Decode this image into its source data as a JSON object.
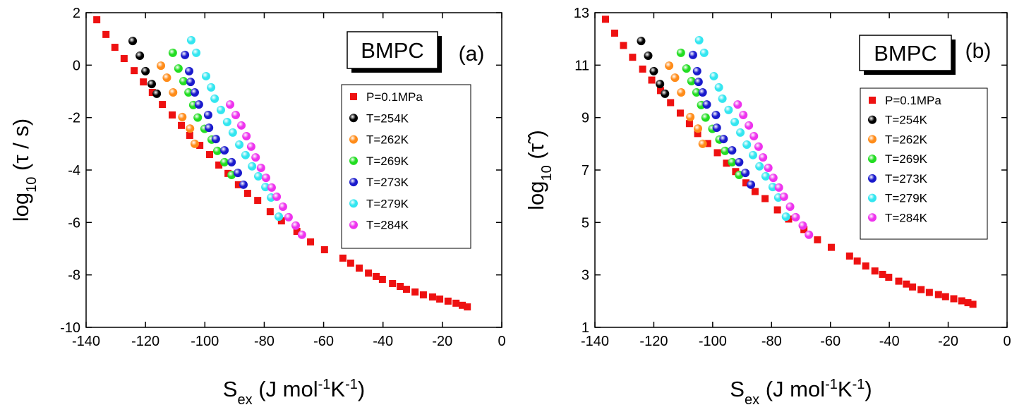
{
  "chart_data": [
    {
      "type": "scatter",
      "xlabel": [
        {
          "text": "S"
        },
        {
          "text": "ex",
          "script": "sub"
        },
        {
          "text": " (J mol"
        },
        {
          "text": "-1",
          "script": "sup"
        },
        {
          "text": "K"
        },
        {
          "text": "-1",
          "script": "sup"
        },
        {
          "text": ")"
        }
      ],
      "ylabel": [
        {
          "text": "log"
        },
        {
          "text": "10",
          "script": "sub"
        },
        {
          "text": " (τ / s)"
        }
      ],
      "annotations": [
        "BMPC",
        "(a)"
      ],
      "xlim": [
        -140,
        0
      ],
      "xticks": [
        -140,
        -120,
        -100,
        -80,
        -60,
        -40,
        -20,
        0
      ],
      "ylim": [
        -10,
        2
      ],
      "yticks": [
        -10,
        -8,
        -6,
        -4,
        -2,
        0,
        2
      ],
      "series": [
        {
          "name": "P=0.1MPa",
          "color": "#ee1111",
          "marker": "square",
          "x": [
            -136.4,
            -133.3,
            -130.3,
            -127.2,
            -123.8,
            -120.7,
            -117.7,
            -114.3,
            -111.0,
            -107.9,
            -105.1,
            -101.7,
            -98.4,
            -95.3,
            -92.2,
            -88.7,
            -85.6,
            -82.2,
            -78.0,
            -74.2,
            -69.0,
            -64.4,
            -59.7,
            -53.5,
            -50.9,
            -48.0,
            -44.9,
            -42.3,
            -40.2,
            -36.8,
            -34.2,
            -32.1,
            -29.2,
            -26.4,
            -23.3,
            -20.9,
            -18.1,
            -15.4,
            -13.3,
            -11.6
          ],
          "values": [
            1.73,
            1.17,
            0.68,
            0.25,
            -0.21,
            -0.64,
            -1.04,
            -1.5,
            -1.9,
            -2.3,
            -2.68,
            -3.06,
            -3.41,
            -3.81,
            -4.13,
            -4.56,
            -4.89,
            -5.16,
            -5.59,
            -5.94,
            -6.34,
            -6.74,
            -7.04,
            -7.36,
            -7.55,
            -7.74,
            -7.93,
            -8.06,
            -8.17,
            -8.33,
            -8.44,
            -8.55,
            -8.65,
            -8.76,
            -8.84,
            -8.92,
            -9.0,
            -9.08,
            -9.16,
            -9.22
          ]
        },
        {
          "name": "T=254K",
          "color": "#000000",
          "marker": "sphere",
          "x": [
            -124.3,
            -121.9,
            -120.0,
            -117.9,
            -116.2
          ],
          "values": [
            0.92,
            0.36,
            -0.23,
            -0.72,
            -1.09
          ]
        },
        {
          "name": "T=262K",
          "color": "#ff8c1a",
          "marker": "sphere",
          "x": [
            -114.8,
            -112.8,
            -110.7,
            -107.6,
            -105.0,
            -103.4
          ],
          "values": [
            -0.02,
            -0.48,
            -1.04,
            -1.98,
            -2.42,
            -3.0
          ]
        },
        {
          "name": "T=269K",
          "color": "#22dd22",
          "marker": "sphere",
          "x": [
            -110.8,
            -108.9,
            -107.2,
            -105.5,
            -103.9,
            -102.4,
            -100.1,
            -97.7,
            -95.8,
            -93.4,
            -91.0
          ],
          "values": [
            0.47,
            -0.13,
            -0.61,
            -1.04,
            -1.52,
            -2.0,
            -2.43,
            -2.84,
            -3.27,
            -3.7,
            -4.19
          ]
        },
        {
          "name": "T=273K",
          "color": "#1a1acc",
          "marker": "sphere",
          "x": [
            -106.7,
            -105.3,
            -104.8,
            -103.4,
            -102.0,
            -98.9,
            -98.6,
            -96.3,
            -93.4,
            -91.0,
            -88.9,
            -87.0
          ],
          "values": [
            0.39,
            -0.23,
            -0.64,
            -1.04,
            -1.5,
            -1.9,
            -2.39,
            -2.82,
            -3.25,
            -3.7,
            -4.11,
            -4.56
          ]
        },
        {
          "name": "T=279K",
          "color": "#33e6f0",
          "marker": "sphere",
          "x": [
            -104.6,
            -102.9,
            -99.6,
            -97.9,
            -96.7,
            -94.6,
            -92.5,
            -90.6,
            -88.4,
            -86.3,
            -84.1,
            -82.0,
            -79.6,
            -77.7,
            -75.1
          ],
          "values": [
            0.95,
            0.47,
            -0.42,
            -0.85,
            -1.28,
            -1.71,
            -2.17,
            -2.57,
            -3.03,
            -3.43,
            -3.86,
            -4.24,
            -4.65,
            -5.05,
            -5.78
          ]
        },
        {
          "name": "T=284K",
          "color": "#ee33ee",
          "marker": "sphere",
          "x": [
            -91.5,
            -89.6,
            -87.7,
            -86.0,
            -84.4,
            -82.9,
            -81.1,
            -79.4,
            -77.5,
            -75.8,
            -73.7,
            -71.8,
            -69.4,
            -67.3
          ],
          "values": [
            -1.5,
            -1.9,
            -2.3,
            -2.71,
            -3.11,
            -3.52,
            -3.92,
            -4.3,
            -4.67,
            -5.02,
            -5.4,
            -5.8,
            -6.12,
            -6.47
          ]
        }
      ]
    },
    {
      "type": "scatter",
      "xlabel": [
        {
          "text": "S"
        },
        {
          "text": "ex",
          "script": "sub"
        },
        {
          "text": " (J mol"
        },
        {
          "text": "-1",
          "script": "sup"
        },
        {
          "text": "K"
        },
        {
          "text": "-1",
          "script": "sup"
        },
        {
          "text": ")"
        }
      ],
      "ylabel": [
        {
          "text": "log"
        },
        {
          "text": "10",
          "script": "sub"
        },
        {
          "text": " (τ̃ )"
        }
      ],
      "annotations": [
        "BMPC",
        "(b)"
      ],
      "xlim": [
        -140,
        0
      ],
      "xticks": [
        -140,
        -120,
        -100,
        -80,
        -60,
        -40,
        -20,
        0
      ],
      "ylim": [
        1,
        13
      ],
      "yticks": [
        1,
        3,
        5,
        7,
        9,
        11,
        13
      ],
      "series": [
        {
          "name": "P=0.1MPa",
          "color": "#ee1111",
          "marker": "square",
          "x": [
            -136.4,
            -133.3,
            -130.3,
            -127.2,
            -123.8,
            -120.7,
            -117.7,
            -114.3,
            -111.0,
            -107.9,
            -105.1,
            -101.7,
            -98.4,
            -95.3,
            -92.2,
            -88.7,
            -85.6,
            -82.2,
            -78.0,
            -74.2,
            -69.0,
            -64.4,
            -59.7,
            -53.5,
            -50.9,
            -48.0,
            -44.9,
            -42.3,
            -40.2,
            -36.8,
            -34.2,
            -32.1,
            -29.2,
            -26.4,
            -23.3,
            -20.9,
            -18.1,
            -15.4,
            -13.3,
            -11.6
          ],
          "values": [
            12.75,
            12.22,
            11.75,
            11.3,
            10.85,
            10.43,
            10.03,
            9.57,
            9.17,
            8.77,
            8.39,
            8.01,
            7.66,
            7.26,
            6.94,
            6.51,
            6.18,
            5.91,
            5.48,
            5.13,
            4.73,
            4.34,
            4.05,
            3.72,
            3.53,
            3.34,
            3.15,
            3.02,
            2.91,
            2.76,
            2.65,
            2.54,
            2.44,
            2.33,
            2.25,
            2.17,
            2.09,
            2.01,
            1.94,
            1.88
          ]
        },
        {
          "name": "T=254K",
          "color": "#000000",
          "marker": "sphere",
          "x": [
            -124.3,
            -121.9,
            -120.0,
            -117.9,
            -116.2
          ],
          "values": [
            11.92,
            11.36,
            10.77,
            10.28,
            9.91
          ]
        },
        {
          "name": "T=262K",
          "color": "#ff8c1a",
          "marker": "sphere",
          "x": [
            -114.8,
            -112.8,
            -110.7,
            -107.6,
            -105.0,
            -103.4
          ],
          "values": [
            10.98,
            10.52,
            9.96,
            9.02,
            8.58,
            8.0
          ]
        },
        {
          "name": "T=269K",
          "color": "#22dd22",
          "marker": "sphere",
          "x": [
            -110.8,
            -108.9,
            -107.2,
            -105.5,
            -103.9,
            -102.4,
            -100.1,
            -97.7,
            -95.8,
            -93.4,
            -91.0
          ],
          "values": [
            11.47,
            10.87,
            10.39,
            9.96,
            9.48,
            9.0,
            8.57,
            8.16,
            7.73,
            7.3,
            6.81
          ]
        },
        {
          "name": "T=273K",
          "color": "#1a1acc",
          "marker": "sphere",
          "x": [
            -106.7,
            -105.3,
            -104.8,
            -103.4,
            -102.0,
            -98.9,
            -98.6,
            -96.3,
            -93.4,
            -91.0,
            -88.9,
            -87.0
          ],
          "values": [
            11.39,
            10.77,
            10.36,
            9.96,
            9.5,
            9.1,
            8.61,
            8.18,
            7.75,
            7.3,
            6.89,
            6.44
          ]
        },
        {
          "name": "T=279K",
          "color": "#33e6f0",
          "marker": "sphere",
          "x": [
            -104.6,
            -102.9,
            -99.6,
            -97.9,
            -96.7,
            -94.6,
            -92.5,
            -90.6,
            -88.4,
            -86.3,
            -84.1,
            -82.0,
            -79.6,
            -77.7,
            -75.1
          ],
          "values": [
            11.95,
            11.47,
            10.58,
            10.15,
            9.72,
            9.29,
            8.83,
            8.43,
            7.97,
            7.57,
            7.14,
            6.76,
            6.35,
            5.95,
            5.22
          ]
        },
        {
          "name": "T=284K",
          "color": "#ee33ee",
          "marker": "sphere",
          "x": [
            -91.5,
            -89.6,
            -87.7,
            -86.0,
            -84.4,
            -82.9,
            -81.1,
            -79.4,
            -77.5,
            -75.8,
            -73.7,
            -71.8,
            -69.4,
            -67.3
          ],
          "values": [
            9.5,
            9.1,
            8.7,
            8.29,
            7.89,
            7.48,
            7.08,
            6.7,
            6.33,
            5.98,
            5.6,
            5.2,
            4.88,
            4.53
          ]
        }
      ]
    }
  ]
}
